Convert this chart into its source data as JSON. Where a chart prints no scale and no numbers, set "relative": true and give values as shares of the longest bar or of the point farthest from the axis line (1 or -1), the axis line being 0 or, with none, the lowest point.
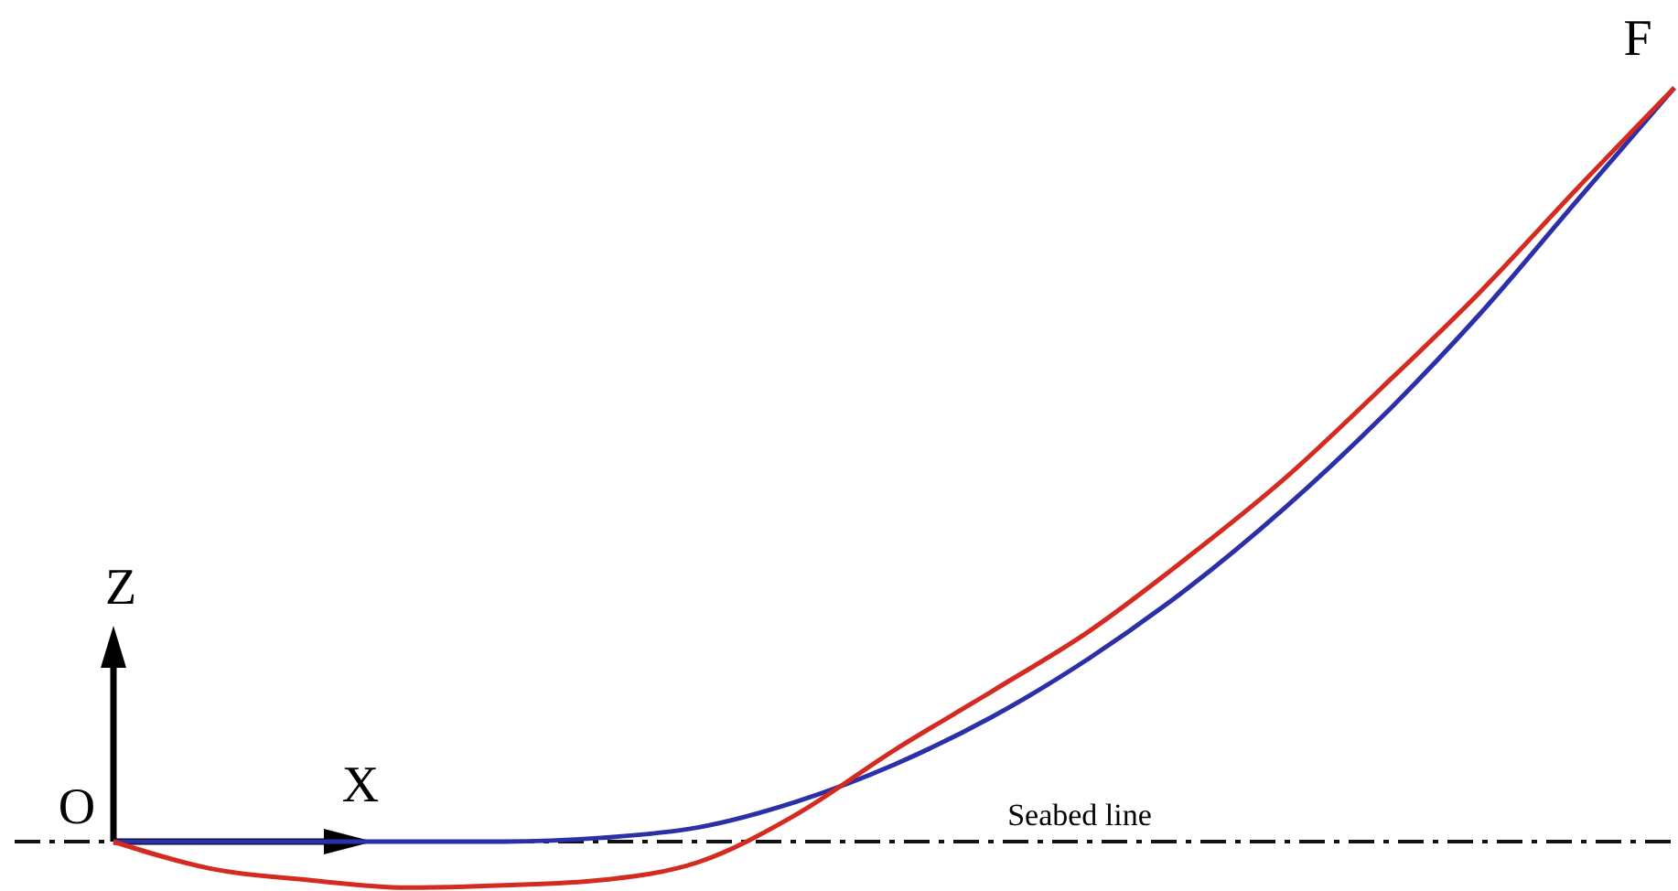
{
  "chart_data": {
    "type": "line",
    "relative": true,
    "categories": [
      null,
      null,
      null,
      null,
      null,
      null,
      null,
      null,
      null,
      null,
      null,
      null,
      null,
      null,
      null,
      null,
      null
    ],
    "series": [
      {
        "color": "#2b2fa8",
        "values": [
          0,
          0,
          0,
          0,
          0,
          0.005,
          0.019,
          0.053,
          0.102,
          0.165,
          0.243,
          0.335,
          0.442,
          0.563,
          0.699,
          0.85,
          1
        ]
      },
      {
        "color": "#d42a20",
        "values": [
          0,
          -0.036,
          -0.051,
          -0.061,
          -0.058,
          -0.051,
          -0.027,
          0.036,
          0.121,
          0.199,
          0.279,
          0.376,
          0.481,
          0.602,
          0.728,
          0.866,
          1
        ]
      }
    ],
    "ref_lines": [
      {
        "axis": "y",
        "value": 0,
        "label": "Seabed line",
        "line_style": "dashed",
        "color": "#111111"
      }
    ],
    "annotations": [
      "F",
      "O",
      "Z",
      "X"
    ]
  }
}
